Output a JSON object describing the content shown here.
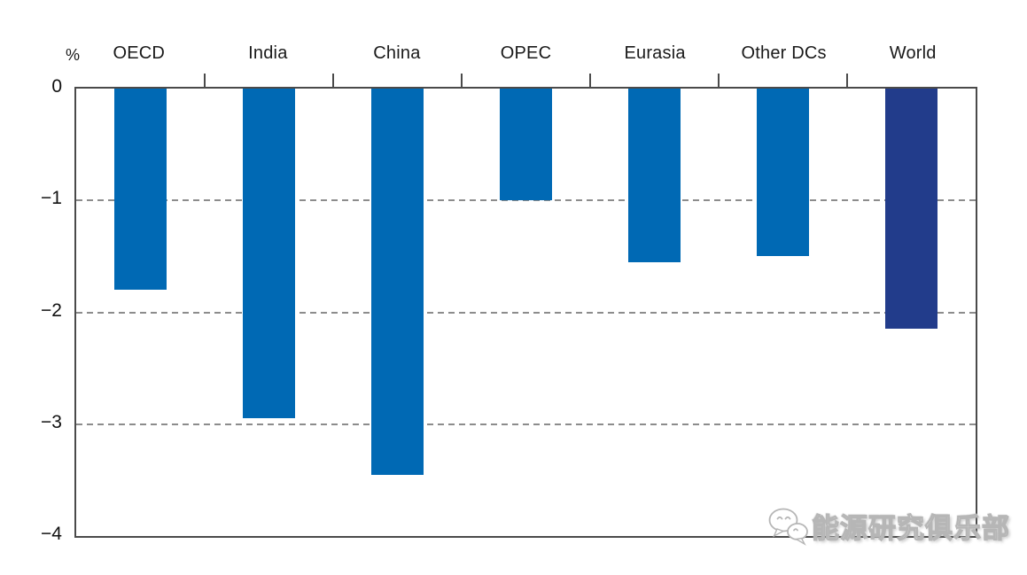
{
  "chart_data": {
    "type": "bar",
    "title": "",
    "unit_label": "%",
    "categories": [
      "OECD",
      "India",
      "China",
      "OPEC",
      "Eurasia",
      "Other DCs",
      "World"
    ],
    "values": [
      -1.8,
      -2.95,
      -3.45,
      -1.0,
      -1.55,
      -1.5,
      -2.15
    ],
    "bar_colors": [
      "#0069b4",
      "#0069b4",
      "#0069b4",
      "#0069b4",
      "#0069b4",
      "#0069b4",
      "#223c8b"
    ],
    "ylim": [
      -4,
      0
    ],
    "yticks": [
      0,
      -1,
      -2,
      -3,
      -4
    ],
    "ytick_labels": [
      "0",
      "−1",
      "−2",
      "−3",
      "−4"
    ],
    "gridline_values": [
      -1,
      -2,
      -3
    ],
    "grid_style": "dashed",
    "legend_position": "none",
    "axis_color": "#4a4a4a",
    "grid_color": "#8c8c8c"
  },
  "watermark": {
    "text": "能源研究俱乐部",
    "icon": "wechat-icon"
  }
}
